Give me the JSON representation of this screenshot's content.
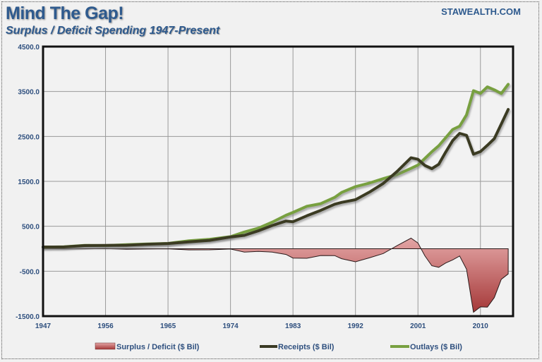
{
  "header": {
    "title": "Mind The Gap!",
    "subtitle": "Surplus / Deficit Spending 1947-Present",
    "brand": "STAWEALTH.COM"
  },
  "colors": {
    "title": "#2e5a8e",
    "receipts": "#3a3a24",
    "outlays": "#78a040",
    "deficit_fill_top": "#e0a0a0",
    "deficit_fill_bottom": "#a83a3a"
  },
  "chart_data": {
    "type": "line",
    "title": "Mind The Gap!",
    "subtitle": "Surplus / Deficit Spending 1947-Present",
    "xlabel": "",
    "ylabel": "",
    "ylim": [
      -1500,
      4500
    ],
    "xlim": [
      1947,
      2014.7
    ],
    "yticks": [
      -1500,
      -500,
      500,
      1500,
      2500,
      3500,
      4500
    ],
    "ytick_labels": [
      "-1500.0",
      "-500.0",
      "500.0",
      "1500.0",
      "2500.0",
      "3500.0",
      "4500.0"
    ],
    "xticks": [
      1947,
      1956,
      1965,
      1974,
      1983,
      1992,
      2001,
      2010
    ],
    "xtick_labels": [
      "1947",
      "1956",
      "1965",
      "1974",
      "1983",
      "1992",
      "2001",
      "2010"
    ],
    "grid": true,
    "legend_position": "bottom",
    "x": [
      1947,
      1950,
      1953,
      1956,
      1959,
      1962,
      1965,
      1968,
      1971,
      1974,
      1976,
      1978,
      1980,
      1982,
      1983,
      1985,
      1987,
      1989,
      1990,
      1992,
      1994,
      1996,
      1998,
      2000,
      2001,
      2002,
      2003,
      2004,
      2005,
      2006,
      2007,
      2008,
      2009,
      2010,
      2011,
      2012,
      2013,
      2014
    ],
    "series": [
      {
        "name": "Surplus / Deficit ($ Bil)",
        "kind": "area",
        "values": [
          4,
          -3,
          -5,
          4,
          -12,
          -7,
          -1,
          -25,
          -23,
          -6,
          -74,
          -59,
          -74,
          -128,
          -208,
          -212,
          -150,
          -153,
          -221,
          -290,
          -203,
          -107,
          69,
          236,
          128,
          -158,
          -378,
          -413,
          -318,
          -248,
          -161,
          -459,
          -1413,
          -1294,
          -1300,
          -1087,
          -680,
          -560
        ]
      },
      {
        "name": "Receipts ($ Bil)",
        "kind": "line",
        "values": [
          39,
          40,
          70,
          75,
          79,
          100,
          117,
          153,
          187,
          263,
          298,
          399,
          517,
          618,
          601,
          734,
          854,
          991,
          1032,
          1091,
          1259,
          1453,
          1722,
          2025,
          1991,
          1853,
          1782,
          1880,
          2154,
          2407,
          2568,
          2524,
          2105,
          2163,
          2303,
          2450,
          2775,
          3100
        ]
      },
      {
        "name": "Outlays ($ Bil)",
        "kind": "line",
        "values": [
          35,
          43,
          75,
          71,
          91,
          107,
          118,
          178,
          210,
          269,
          372,
          458,
          591,
          746,
          809,
          946,
          1004,
          1144,
          1253,
          1382,
          1462,
          1560,
          1653,
          1789,
          1863,
          2011,
          2160,
          2293,
          2472,
          2655,
          2729,
          2983,
          3518,
          3457,
          3603,
          3537,
          3455,
          3660
        ]
      }
    ]
  },
  "legend": {
    "items": [
      {
        "label": "Surplus / Deficit ($ Bil)"
      },
      {
        "label": "Receipts ($ Bil)"
      },
      {
        "label": "Outlays ($ Bil)"
      }
    ]
  }
}
